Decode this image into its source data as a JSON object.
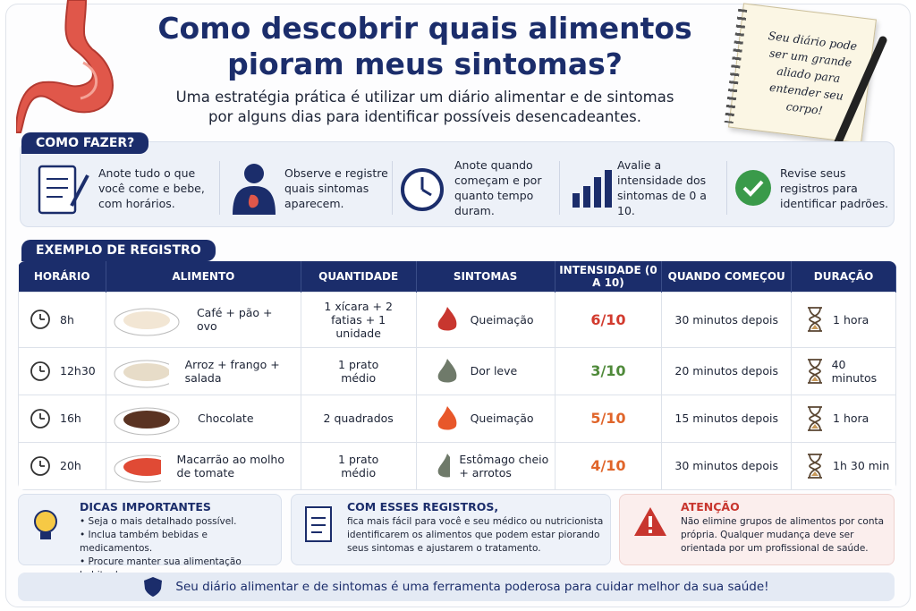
{
  "header": {
    "title": "Como descobrir quais alimentos pioram meus sintomas?",
    "subtitle": "Uma estratégia prática é utilizar um diário alimentar e de sintomas por alguns dias para identificar possíveis desencadeantes.",
    "note": "Seu diário pode ser um grande aliado para entender seu corpo!"
  },
  "how_to": {
    "title": "COMO FAZER?",
    "steps": [
      "Anote tudo o que você come e bebe, com horários.",
      "Observe e registre quais sintomas aparecem.",
      "Anote quando começam e por quanto tempo duram.",
      "Avalie a intensidade dos sintomas de 0 a 10.",
      "Revise seus registros para identificar padrões."
    ]
  },
  "example": {
    "title": "EXEMPLO DE REGISTRO",
    "columns": [
      "HORÁRIO",
      "ALIMENTO",
      "QUANTIDADE",
      "SINTOMAS",
      "INTENSIDADE (0 A 10)",
      "QUANDO COMEÇOU",
      "DURAÇÃO"
    ],
    "rows": [
      [
        "8h",
        "Café + pão + ovo",
        "1 xícara + 2 fatias + 1 unidade",
        "Queimação",
        "6/10",
        "30 minutos depois",
        "1 hora"
      ],
      [
        "12h30",
        "Arroz + frango + salada",
        "1 prato médio",
        "Dor leve",
        "3/10",
        "20 minutos depois",
        "40 minutos"
      ],
      [
        "16h",
        "Chocolate",
        "2 quadrados",
        "Queimação",
        "5/10",
        "15 minutos depois",
        "1 hora"
      ],
      [
        "20h",
        "Macarrão ao molho de tomate",
        "1 prato médio",
        "Estômago cheio + arrotos",
        "4/10",
        "30 minutos depois",
        "1h 30 min"
      ]
    ]
  },
  "tips": {
    "title": "DICAS IMPORTANTES",
    "items": [
      "Seja o mais detalhado possível.",
      "Inclua também bebidas e medicamentos.",
      "Procure manter sua alimentação habitual."
    ]
  },
  "records": {
    "title": "COM ESSES REGISTROS,",
    "text": "fica mais fácil para você e seu médico ou nutricionista identificarem os alimentos que podem estar piorando seus sintomas e ajustarem o tratamento."
  },
  "warning": {
    "title": "ATENÇÃO",
    "text": "Não elimine grupos de alimentos por conta própria. Qualquer mudança deve ser orientada por um profissional de saúde."
  },
  "footer": "Seu diário alimentar e de sintomas é uma ferramenta poderosa para cuidar melhor da sua saúde!"
}
